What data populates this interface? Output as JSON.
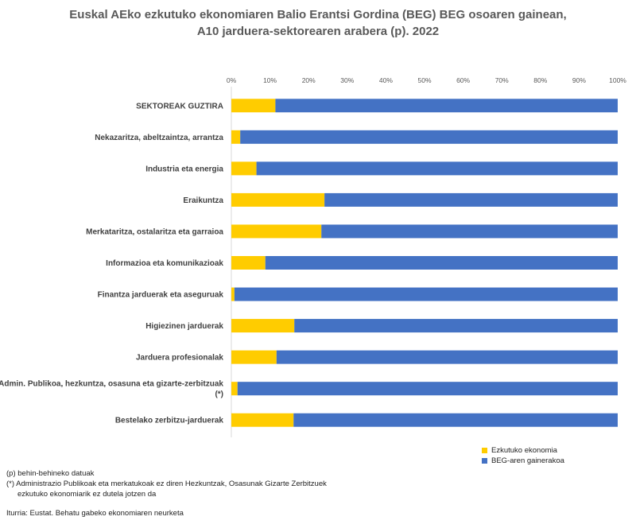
{
  "title": {
    "line1": "Euskal AEko ezkutuko ekonomiaren Balio Erantsi Gordina (BEG) BEG osoaren gainean,",
    "line2": "A10 jarduera-sektorearen arabera (p). 2022"
  },
  "legend": {
    "hidden_label": "Ezkutuko ekonomia",
    "rest_label": "BEG-aren gainerakoa"
  },
  "notes": {
    "p": "(p) behin-behineko datuak",
    "star_line1": "(*) Administrazio Publikoak eta merkatukoak ez diren Hezkuntzak, Osasunak  Gizarte Zerbitzuek",
    "star_line2": "ezkutuko ekonomiarik ez dutela jotzen da",
    "source": "Iturria: Eustat. Behatu gabeko ekonomiaren neurketa"
  },
  "chart_data": {
    "type": "bar",
    "orientation": "horizontal",
    "stacked": true,
    "percent_stacked": true,
    "title": "Euskal AEko ezkutuko ekonomiaren Balio Erantsi Gordina (BEG) BEG osoaren gainean, A10 jarduera-sektorearen arabera (p). 2022",
    "xlabel": "",
    "ylabel": "",
    "xlim": [
      0,
      100
    ],
    "x_ticks": [
      "0%",
      "10%",
      "20%",
      "30%",
      "40%",
      "50%",
      "60%",
      "70%",
      "80%",
      "90%",
      "100%"
    ],
    "x_axis_position": "top",
    "legend_position": "bottom-right",
    "categories": [
      [
        "SEKTOREAK GUZTIRA"
      ],
      [
        "Nekazaritza, abeltzaintza, arrantza"
      ],
      [
        "Industria eta energia"
      ],
      [
        "Eraikuntza"
      ],
      [
        "Merkataritza, ostalaritza eta garraioa"
      ],
      [
        "Informazioa eta komunikazioak"
      ],
      [
        "Finantza jarduerak eta aseguruak"
      ],
      [
        "Higiezinen jarduerak"
      ],
      [
        "Jarduera profesionalak"
      ],
      [
        "Admin. Publikoa, hezkuntza, osasuna eta gizarte-zerbitzuak",
        "(*)"
      ],
      [
        "Bestelako zerbitzu-jarduerak"
      ]
    ],
    "series": [
      {
        "name": "Ezkutuko ekonomia",
        "color": "#FFCC00",
        "values": [
          11.4,
          2.3,
          6.5,
          24.1,
          23.3,
          8.8,
          0.8,
          16.3,
          11.7,
          1.6,
          16.1
        ]
      },
      {
        "name": "BEG-aren gainerakoa",
        "color": "#4472C4",
        "values": [
          88.6,
          97.7,
          93.5,
          75.9,
          76.7,
          91.2,
          99.2,
          83.7,
          88.3,
          98.4,
          83.9
        ]
      }
    ]
  }
}
